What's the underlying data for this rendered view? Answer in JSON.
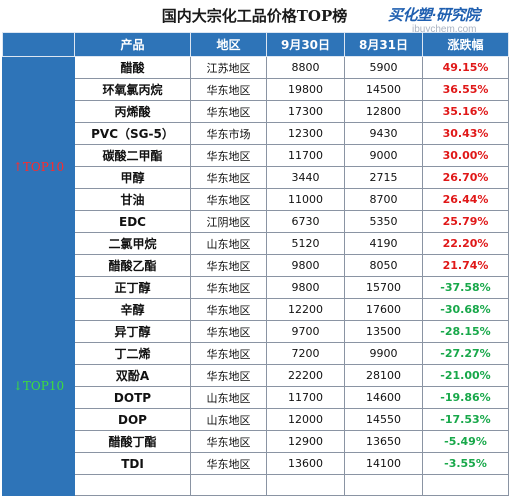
{
  "title": "国内大宗化工品价格TOP榜",
  "logo": {
    "brand": "买化塑·研究院",
    "url": "ibuychem.com"
  },
  "chart_data": {
    "type": "table",
    "columns": [
      "产品",
      "地区",
      "9月30日",
      "8月31日",
      "涨跌幅"
    ],
    "groups": [
      {
        "label": "↑TOP10",
        "direction": "up",
        "rows": [
          {
            "product": "醋酸",
            "region": "江苏地区",
            "sep30": 8800,
            "aug31": 5900,
            "change": "49.15%"
          },
          {
            "product": "环氧氯丙烷",
            "region": "华东地区",
            "sep30": 19800,
            "aug31": 14500,
            "change": "36.55%"
          },
          {
            "product": "丙烯酸",
            "region": "华东地区",
            "sep30": 17300,
            "aug31": 12800,
            "change": "35.16%"
          },
          {
            "product": "PVC（SG-5）",
            "region": "华东市场",
            "sep30": 12300,
            "aug31": 9430,
            "change": "30.43%"
          },
          {
            "product": "碳酸二甲酯",
            "region": "华东地区",
            "sep30": 11700,
            "aug31": 9000,
            "change": "30.00%"
          },
          {
            "product": "甲醇",
            "region": "华东地区",
            "sep30": 3440,
            "aug31": 2715,
            "change": "26.70%"
          },
          {
            "product": "甘油",
            "region": "华东地区",
            "sep30": 11000,
            "aug31": 8700,
            "change": "26.44%"
          },
          {
            "product": "EDC",
            "region": "江阴地区",
            "sep30": 6730,
            "aug31": 5350,
            "change": "25.79%"
          },
          {
            "product": "二氯甲烷",
            "region": "山东地区",
            "sep30": 5120,
            "aug31": 4190,
            "change": "22.20%"
          },
          {
            "product": "醋酸乙酯",
            "region": "华东地区",
            "sep30": 9800,
            "aug31": 8050,
            "change": "21.74%"
          }
        ]
      },
      {
        "label": "↓TOP10",
        "direction": "down",
        "rows": [
          {
            "product": "正丁醇",
            "region": "华东地区",
            "sep30": 9800,
            "aug31": 15700,
            "change": "-37.58%"
          },
          {
            "product": "辛醇",
            "region": "华东地区",
            "sep30": 12200,
            "aug31": 17600,
            "change": "-30.68%"
          },
          {
            "product": "异丁醇",
            "region": "华东地区",
            "sep30": 9700,
            "aug31": 13500,
            "change": "-28.15%"
          },
          {
            "product": "丁二烯",
            "region": "华东地区",
            "sep30": 7200,
            "aug31": 9900,
            "change": "-27.27%"
          },
          {
            "product": "双酚A",
            "region": "华东地区",
            "sep30": 22200,
            "aug31": 28100,
            "change": "-21.00%"
          },
          {
            "product": "DOTP",
            "region": "山东地区",
            "sep30": 11700,
            "aug31": 14600,
            "change": "-19.86%"
          },
          {
            "product": "DOP",
            "region": "山东地区",
            "sep30": 12000,
            "aug31": 14550,
            "change": "-17.53%"
          },
          {
            "product": "醋酸丁酯",
            "region": "华东地区",
            "sep30": 12900,
            "aug31": 13650,
            "change": "-5.49%"
          },
          {
            "product": "TDI",
            "region": "华东地区",
            "sep30": 13600,
            "aug31": 14100,
            "change": "-3.55%"
          },
          {
            "product": "",
            "region": "",
            "sep30": "",
            "aug31": "",
            "change": ""
          }
        ]
      }
    ]
  }
}
